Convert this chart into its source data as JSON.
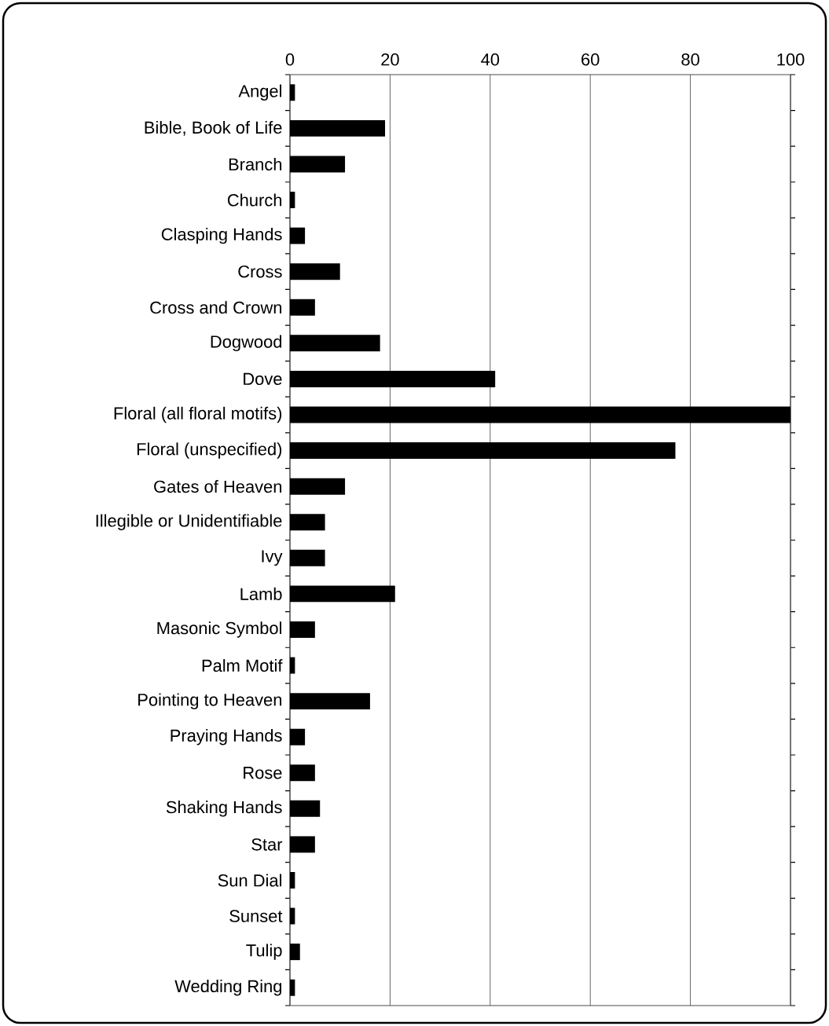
{
  "chart_data": {
    "type": "bar",
    "orientation": "horizontal",
    "categories": [
      "Angel",
      "Bible, Book of Life",
      "Branch",
      "Church",
      "Clasping Hands",
      "Cross",
      "Cross and Crown",
      "Dogwood",
      "Dove",
      "Floral (all floral motifs)",
      "Floral (unspecified)",
      "Gates of Heaven",
      "Illegible or Unidentifiable",
      "Ivy",
      "Lamb",
      "Masonic Symbol",
      "Palm Motif",
      "Pointing to Heaven",
      "Praying Hands",
      "Rose",
      "Shaking Hands",
      "Star",
      "Sun Dial",
      "Sunset",
      "Tulip",
      "Wedding Ring"
    ],
    "values": [
      1,
      19,
      11,
      1,
      3,
      10,
      5,
      18,
      41,
      100,
      77,
      11,
      7,
      7,
      21,
      5,
      1,
      16,
      3,
      5,
      6,
      5,
      1,
      1,
      2,
      1
    ],
    "color": "#000000",
    "xlim": [
      0,
      100
    ],
    "xticks": [
      0,
      20,
      40,
      60,
      80,
      100
    ],
    "grid": "x"
  }
}
